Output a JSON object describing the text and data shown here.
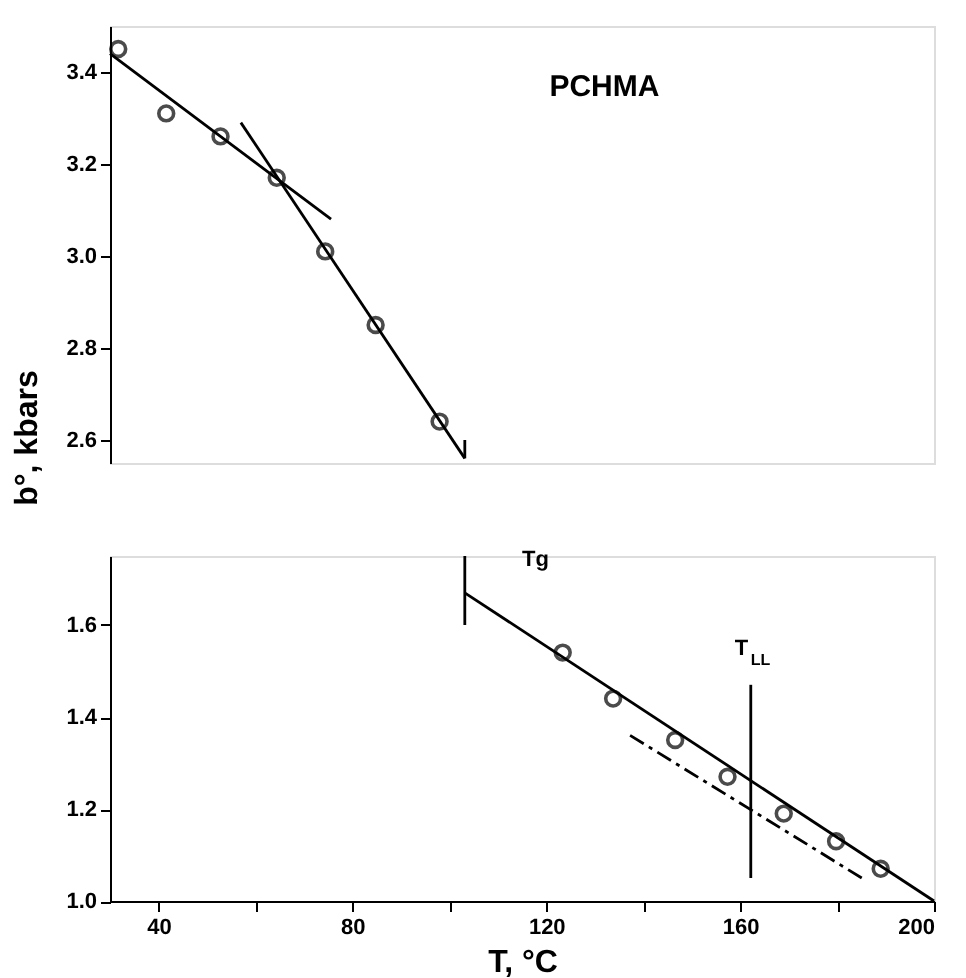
{
  "chart_data": [
    {
      "type": "scatter",
      "title": "PCHMA",
      "ylabel": "b°, kbars",
      "tick_labels": "y",
      "xlim": [
        30,
        200
      ],
      "ylim": [
        2.55,
        3.5
      ],
      "yticks": [
        {
          "value": 2.6,
          "label": "2.6"
        },
        {
          "value": 2.8,
          "label": "2.8"
        },
        {
          "value": 3.0,
          "label": "3.0"
        },
        {
          "value": 3.2,
          "label": "3.2"
        },
        {
          "value": 3.4,
          "label": "3.4"
        }
      ],
      "marker": "circle",
      "grid": false,
      "series": [
        {
          "color": "#000000",
          "x": [
            31.7,
            41.6,
            52.8,
            64.4,
            74.4,
            84.8,
            98
          ],
          "values": [
            3.45,
            3.31,
            3.26,
            3.17,
            3.01,
            2.85,
            2.64
          ]
        },
        {
          "type": "line",
          "marker": "none",
          "color": "#000000",
          "x": [
            30,
            75.6
          ],
          "values": [
            3.44,
            3.08
          ]
        },
        {
          "type": "line",
          "marker": "none",
          "color": "#000000",
          "x": [
            57,
            103.2
          ],
          "values": [
            3.29,
            2.56
          ]
        },
        {
          "type": "line",
          "marker": "none",
          "color": "#000000",
          "x": [
            103.2,
            103.2
          ],
          "values": [
            2.6,
            2.56
          ]
        }
      ]
    },
    {
      "type": "scatter",
      "xlabel": "T, °C",
      "xlim": [
        30,
        200
      ],
      "xticks": [
        40,
        {
          "value": 60,
          "label": null
        },
        80,
        {
          "value": 100,
          "label": null
        },
        120,
        {
          "value": 140,
          "label": null
        },
        160,
        {
          "value": 180,
          "label": null
        },
        200
      ],
      "ylim": [
        1.0,
        1.75
      ],
      "yticks": [
        {
          "value": 1.0,
          "label": "1.0"
        },
        {
          "value": 1.2,
          "label": "1.2"
        },
        {
          "value": 1.4,
          "label": "1.4"
        },
        {
          "value": 1.6,
          "label": "1.6"
        }
      ],
      "marker": "circle",
      "grid": false,
      "series": [
        {
          "color": "#000000",
          "x": [
            123.4,
            133.8,
            146.6,
            157.4,
            169,
            179.8,
            189
          ],
          "values": [
            1.54,
            1.44,
            1.35,
            1.27,
            1.19,
            1.13,
            1.07
          ]
        },
        {
          "type": "line",
          "marker": "none",
          "color": "#000000",
          "x": [
            103.2,
            200
          ],
          "values": [
            1.67,
            1.0
          ]
        },
        {
          "type": "line",
          "marker": "none",
          "color": "#000000",
          "line_style": "dashed",
          "x": [
            137.3,
            185.1
          ],
          "values": [
            1.36,
            1.05
          ]
        },
        {
          "type": "line",
          "marker": "none",
          "color": "#000000",
          "x": [
            103.2,
            103.2
          ],
          "values": [
            1.75,
            1.6
          ]
        },
        {
          "type": "line",
          "marker": "none",
          "color": "#000000",
          "x": [
            162.2,
            162.2
          ],
          "values": [
            1.05,
            1.47
          ]
        }
      ],
      "annotations": [
        "Tg",
        {
          "text": "T$_{LL}$",
          "x": 162.2,
          "y": 1.47
        }
      ]
    }
  ]
}
